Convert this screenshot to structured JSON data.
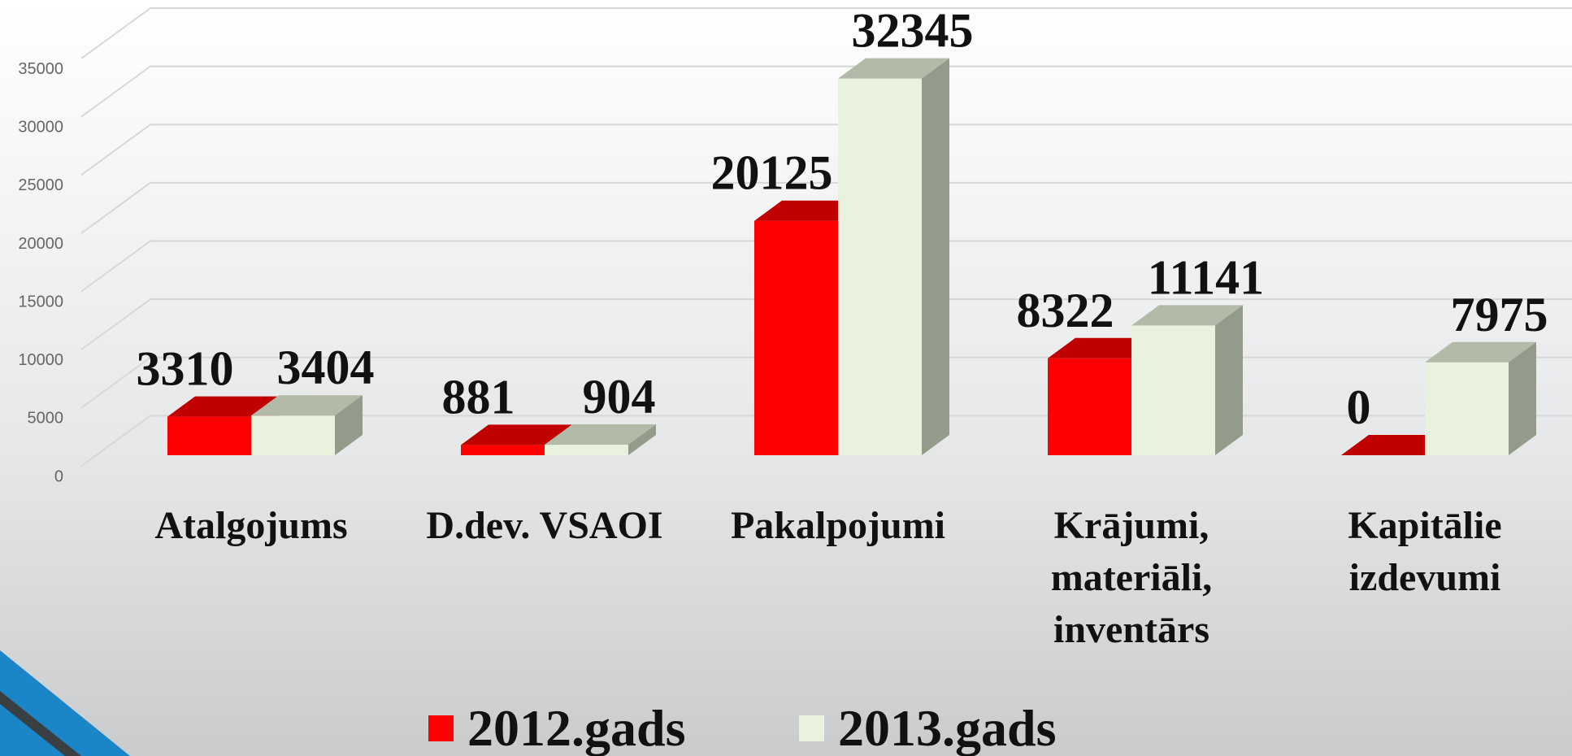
{
  "chart_data": {
    "type": "bar3d",
    "categories": [
      "Atalgojums",
      "D.dev. VSAOI",
      "Pakalpojumi",
      "Krājumi, materiāli, inventārs",
      "Kapitālie izdevumi"
    ],
    "series": [
      {
        "name": "2012.gads",
        "color": "#ff0000",
        "values": [
          3310,
          881,
          20125,
          8322,
          0
        ]
      },
      {
        "name": "2013.gads",
        "color": "#e8f2dc",
        "values": [
          3404,
          904,
          32345,
          11141,
          7975
        ]
      }
    ],
    "ylim": [
      0,
      40000
    ],
    "yticks": [
      0,
      5000,
      10000,
      15000,
      20000,
      25000,
      30000,
      35000
    ],
    "grid": true
  }
}
